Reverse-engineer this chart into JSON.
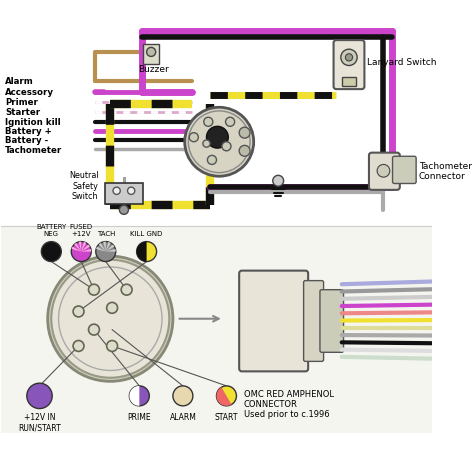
{
  "bg_color": "#ffffff",
  "purple": "#cc44cc",
  "yellow": "#f0e030",
  "black": "#111111",
  "gray": "#aaaaaa",
  "tan": "#b89050",
  "pink_dashed": "#ddaacc",
  "left_labels": [
    "Alarm",
    "Accessory",
    "Primer",
    "Starter",
    "Ignition kill",
    "Battery +",
    "Battery -",
    "Tachometer"
  ],
  "connector_label": "OMC RED AMPHENOL\nCONNECTOR\nUsed prior to c.1996",
  "top_pin_labels": [
    "BATTERY\nNEG",
    "FUSED\n+12V",
    "TACH",
    "KILL GND"
  ],
  "bot_pin_labels": [
    "+12V IN\nRUN/START",
    "PRIME",
    "ALARM",
    "START"
  ]
}
